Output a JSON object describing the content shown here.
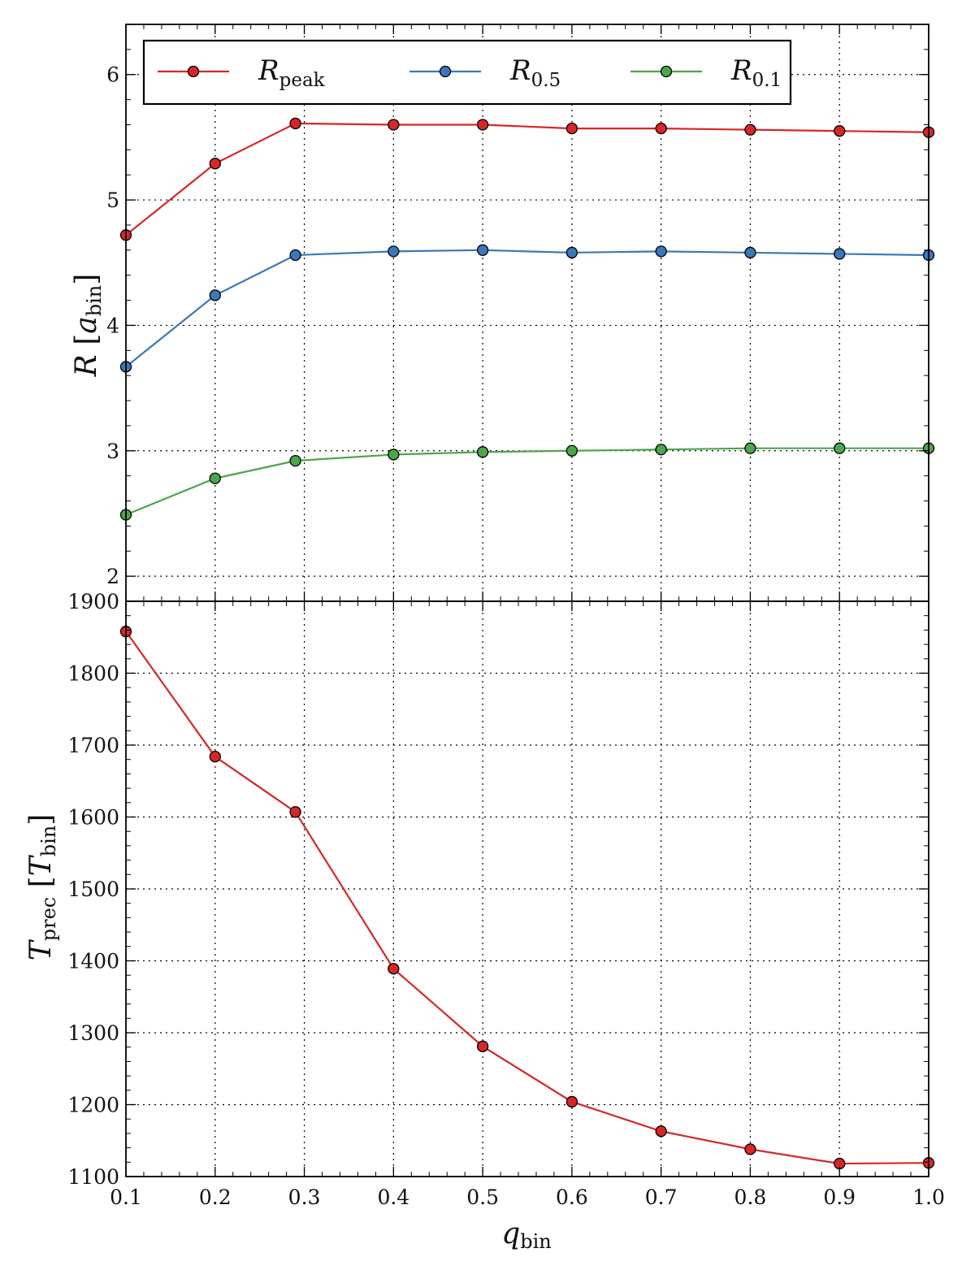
{
  "chart_data": [
    {
      "type": "line",
      "ylabel": {
        "main": "R",
        "bracket": "a",
        "sub": "bin"
      },
      "xlim": [
        0.1,
        1.0
      ],
      "ylim": [
        1.8,
        6.4
      ],
      "yticks": [
        2,
        3,
        4,
        5,
        6
      ],
      "grid": true,
      "legend": {
        "placement": "top-left",
        "columns": 3
      },
      "x": [
        0.1,
        0.2,
        0.29,
        0.4,
        0.5,
        0.6,
        0.7,
        0.8,
        0.9,
        1.0
      ],
      "series": [
        {
          "name": "R",
          "name_sub": "peak",
          "color": "#d62728",
          "values": [
            4.72,
            5.29,
            5.61,
            5.6,
            5.6,
            5.57,
            5.57,
            5.56,
            5.55,
            5.54
          ]
        },
        {
          "name": "R",
          "name_sub": "0.5",
          "color": "#3a78b9",
          "values": [
            3.67,
            4.24,
            4.56,
            4.59,
            4.6,
            4.58,
            4.59,
            4.58,
            4.57,
            4.56
          ]
        },
        {
          "name": "R",
          "name_sub": "0.1",
          "color": "#4ca64c",
          "values": [
            2.49,
            2.78,
            2.92,
            2.97,
            2.99,
            3.0,
            3.01,
            3.02,
            3.02,
            3.02
          ]
        }
      ]
    },
    {
      "type": "line",
      "xlabel": {
        "main": "q",
        "sub": "bin"
      },
      "ylabel": {
        "main": "T",
        "main_sub": "prec",
        "bracket": "T",
        "sub": "bin"
      },
      "xlim": [
        0.1,
        1.0
      ],
      "ylim": [
        1100,
        1900
      ],
      "xticks": [
        "0.1",
        "0.2",
        "0.3",
        "0.4",
        "0.5",
        "0.6",
        "0.7",
        "0.8",
        "0.9",
        "1.0"
      ],
      "yticks": [
        1100,
        1200,
        1300,
        1400,
        1500,
        1600,
        1700,
        1800,
        1900
      ],
      "grid": true,
      "x": [
        0.1,
        0.2,
        0.29,
        0.4,
        0.5,
        0.6,
        0.7,
        0.8,
        0.9,
        1.0
      ],
      "series": [
        {
          "color": "#d62728",
          "values": [
            1858,
            1684,
            1607,
            1389,
            1281,
            1204,
            1163,
            1138,
            1118,
            1119
          ]
        }
      ]
    }
  ]
}
